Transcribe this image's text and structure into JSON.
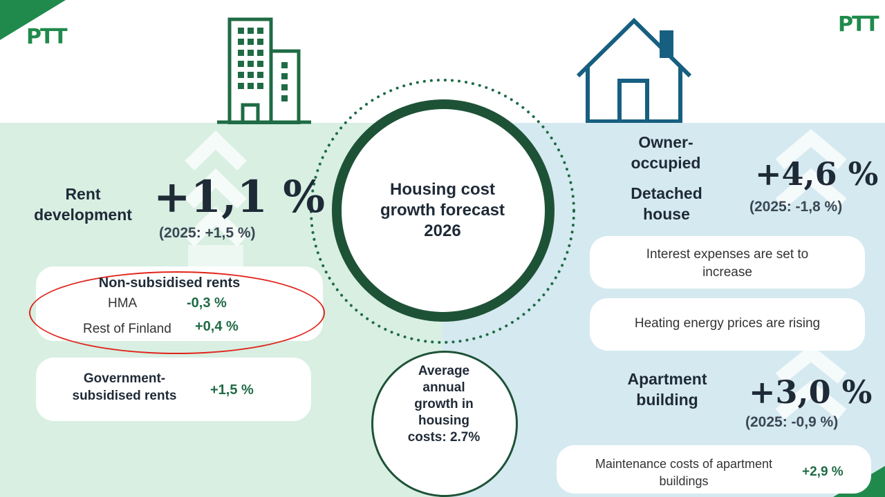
{
  "logo": "PTT",
  "center": {
    "title": "Housing cost growth forecast 2026"
  },
  "average": {
    "text": "Average annual growth in housing costs: 2.7%"
  },
  "rent": {
    "label": "Rent development",
    "value": "+1,1 %",
    "previous": "(2025: +1,5 %)",
    "non_subsidised": {
      "title": "Non-subsidised rents",
      "hma_label": "HMA",
      "hma_value": "-0,3 %",
      "rest_label": "Rest of Finland",
      "rest_value": "+0,4 %"
    },
    "subsidised": {
      "label": "Government-subsidised rents",
      "value": "+1,5 %"
    }
  },
  "owner": {
    "label": "Owner-occupied",
    "detached": {
      "label": "Detached house",
      "value": "+4,6 %",
      "previous": "(2025: -1,8 %)"
    },
    "interest": "Interest expenses are set to increase",
    "heating": "Heating energy prices are rising",
    "apartment": {
      "label": "Apartment building",
      "value": "+3,0 %",
      "previous": "(2025: -0,9 %)"
    },
    "maintenance": {
      "label": "Maintenance costs of apartment buildings",
      "value": "+2,9 %"
    }
  },
  "colors": {
    "green": "#1f8a4c",
    "dark_green": "#1e5237",
    "house_blue": "#175f80",
    "left_bg": "#d8efe2",
    "right_bg": "#d5e9f0",
    "highlight_red": "#e0241b"
  },
  "icons": [
    "apartment-building-icon",
    "house-icon",
    "up-chevrons-icon"
  ]
}
